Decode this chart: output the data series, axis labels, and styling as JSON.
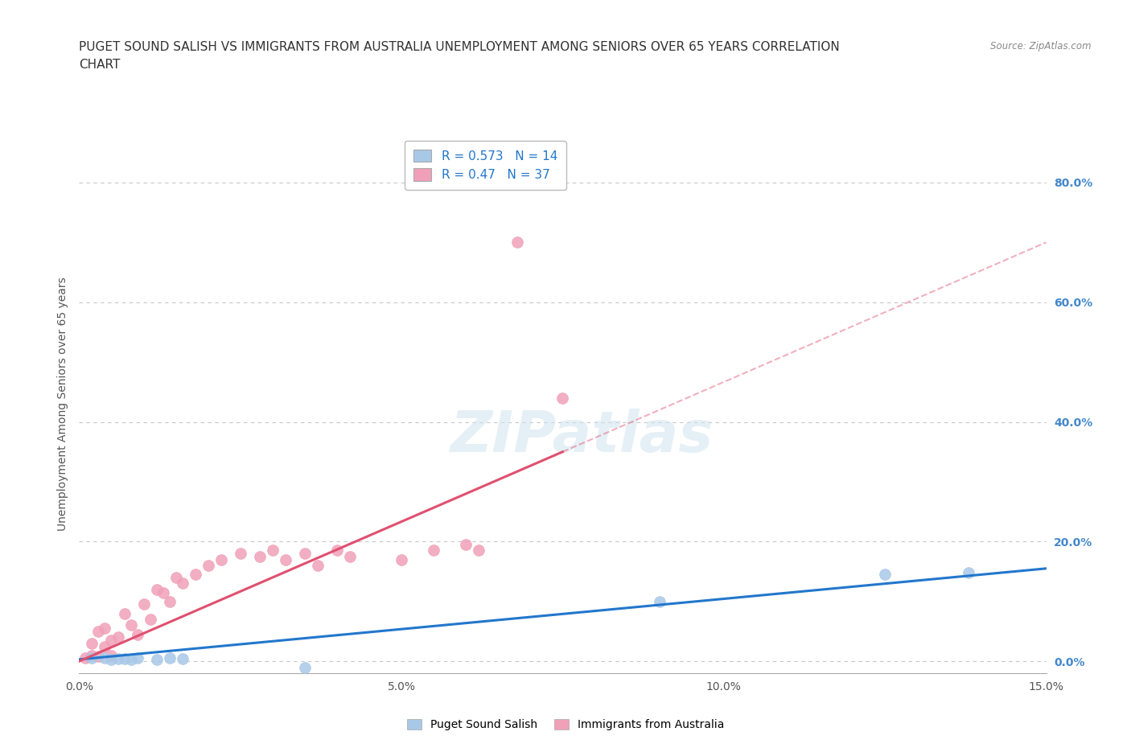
{
  "title": "PUGET SOUND SALISH VS IMMIGRANTS FROM AUSTRALIA UNEMPLOYMENT AMONG SENIORS OVER 65 YEARS CORRELATION\nCHART",
  "source": "Source: ZipAtlas.com",
  "ylabel": "Unemployment Among Seniors over 65 years",
  "xlim": [
    0.0,
    0.15
  ],
  "ylim": [
    -0.02,
    0.88
  ],
  "yticks": [
    0.0,
    0.2,
    0.4,
    0.6,
    0.8
  ],
  "ytick_labels": [
    "0.0%",
    "20.0%",
    "40.0%",
    "60.0%",
    "80.0%"
  ],
  "xticks": [
    0.0,
    0.05,
    0.1,
    0.15
  ],
  "xtick_labels": [
    "0.0%",
    "5.0%",
    "10.0%",
    "15.0%"
  ],
  "background_color": "#ffffff",
  "grid_color": "#c8c8c8",
  "watermark": "ZIPatlas",
  "blue_scatter_x": [
    0.002,
    0.004,
    0.005,
    0.006,
    0.007,
    0.008,
    0.009,
    0.012,
    0.014,
    0.016,
    0.035,
    0.09,
    0.125,
    0.138
  ],
  "blue_scatter_y": [
    0.005,
    0.005,
    0.003,
    0.004,
    0.004,
    0.003,
    0.005,
    0.003,
    0.005,
    0.004,
    -0.01,
    0.1,
    0.145,
    0.148
  ],
  "blue_color": "#a8c8e8",
  "blue_line_color": "#2277cc",
  "blue_R": 0.573,
  "blue_N": 14,
  "pink_scatter_x": [
    0.001,
    0.002,
    0.002,
    0.003,
    0.003,
    0.004,
    0.004,
    0.005,
    0.005,
    0.006,
    0.007,
    0.008,
    0.009,
    0.01,
    0.011,
    0.012,
    0.013,
    0.014,
    0.015,
    0.016,
    0.018,
    0.02,
    0.022,
    0.025,
    0.028,
    0.03,
    0.032,
    0.035,
    0.037,
    0.04,
    0.042,
    0.05,
    0.055,
    0.06,
    0.062,
    0.068,
    0.075
  ],
  "pink_scatter_y": [
    0.005,
    0.01,
    0.03,
    0.008,
    0.05,
    0.025,
    0.055,
    0.01,
    0.035,
    0.04,
    0.08,
    0.06,
    0.045,
    0.095,
    0.07,
    0.12,
    0.115,
    0.1,
    0.14,
    0.13,
    0.145,
    0.16,
    0.17,
    0.18,
    0.175,
    0.185,
    0.17,
    0.18,
    0.16,
    0.185,
    0.175,
    0.17,
    0.185,
    0.195,
    0.185,
    0.7,
    0.44
  ],
  "pink_color": "#f0a0b8",
  "pink_line_color": "#e05070",
  "pink_line_solid_end": 0.075,
  "pink_R": 0.47,
  "pink_N": 37,
  "legend_label_blue": "Puget Sound Salish",
  "legend_label_pink": "Immigrants from Australia",
  "title_fontsize": 11,
  "axis_label_fontsize": 10,
  "tick_fontsize": 10,
  "legend_fontsize": 11
}
